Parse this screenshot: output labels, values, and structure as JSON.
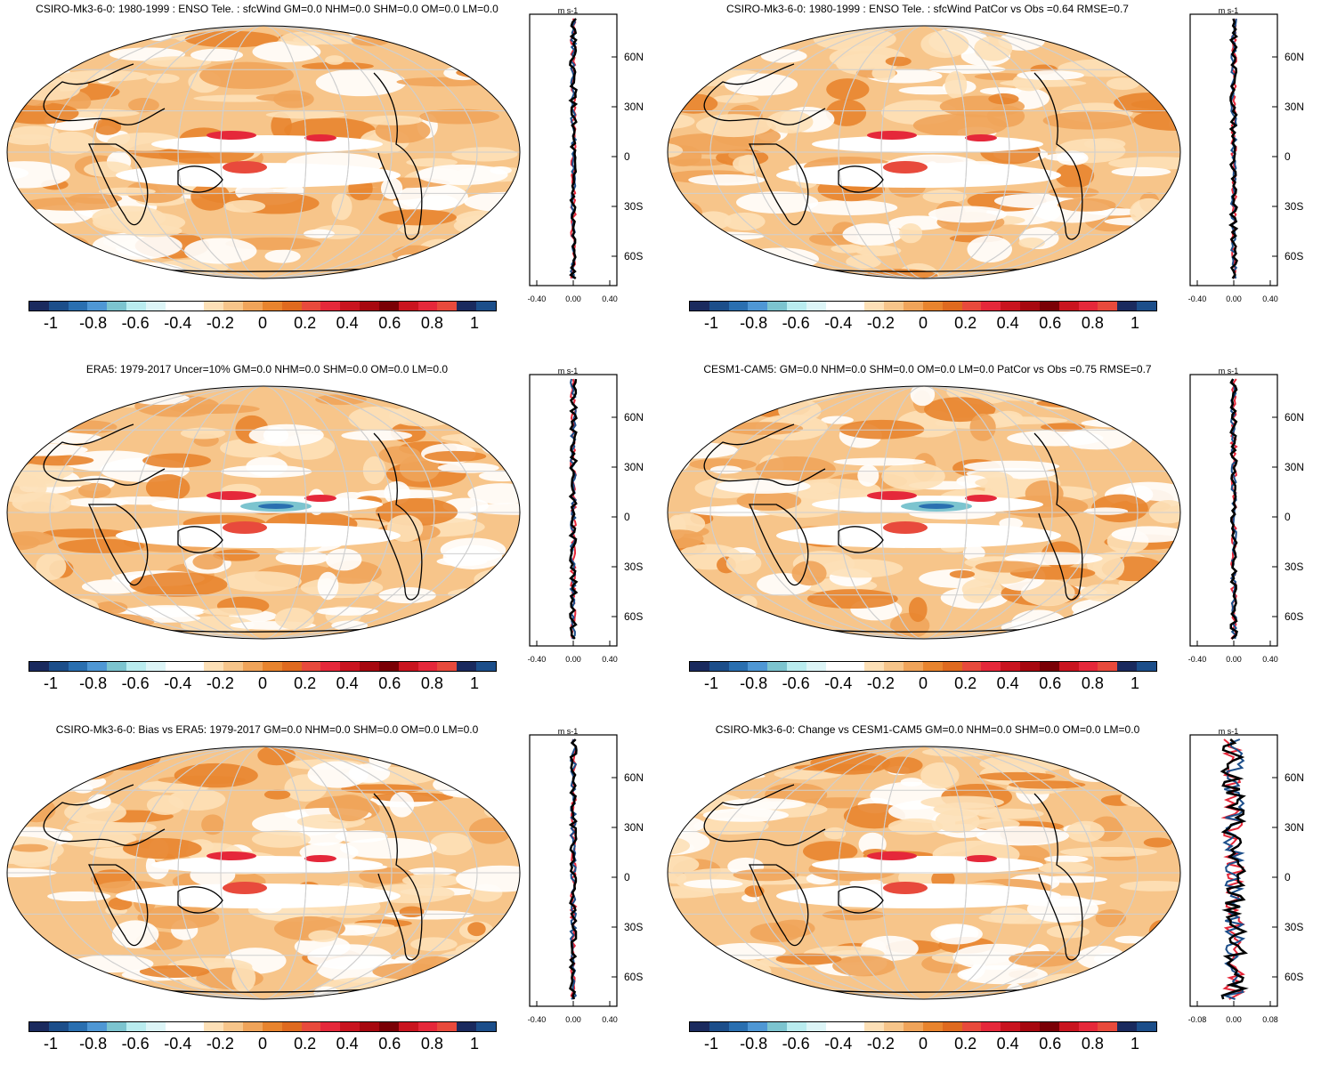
{
  "colorbar": {
    "labels": [
      "-1",
      "-0.8",
      "-0.6",
      "-0.4",
      "-0.2",
      "0",
      "0.2",
      "0.4",
      "0.6",
      "0.8",
      "1"
    ],
    "colors": [
      "#1a2a5e",
      "#1c4e8a",
      "#2a6fb0",
      "#4f97d4",
      "#7cc4cf",
      "#b9ecef",
      "#ddf5f7",
      "#ffffff",
      "#ffffff",
      "#fde0b7",
      "#f7c58a",
      "#f0a45a",
      "#e8842e",
      "#df6a1f",
      "#e84a3c",
      "#e5283a",
      "#c9141f",
      "#a7080f",
      "#7a0005",
      "#c9141f",
      "#e5283a",
      "#e84a3c",
      "#1a2a5e",
      "#1c4e8a"
    ]
  },
  "panels": [
    {
      "title": "CSIRO-Mk3-6-0: 1980-1999 : ENSO Tele. : sfcWind GM=0.0 NHM=0.0 SHM=0.0 OM=0.0 LM=0.0",
      "units": "m s-1",
      "lat_ticks": [
        "60N",
        "30N",
        "0",
        "30S",
        "60S"
      ],
      "x_ticks": [
        "-0.40",
        "0.00",
        "0.40"
      ]
    },
    {
      "title": "CSIRO-Mk3-6-0: 1980-1999 : ENSO Tele. : sfcWind PatCor vs Obs =0.64 RMSE=0.7",
      "units": "m s-1",
      "lat_ticks": [
        "60N",
        "30N",
        "0",
        "30S",
        "60S"
      ],
      "x_ticks": [
        "-0.40",
        "0.00",
        "0.40"
      ]
    },
    {
      "title": "ERA5: 1979-2017 Uncer=10% GM=0.0 NHM=0.0 SHM=0.0 OM=0.0 LM=0.0",
      "units": "m s-1",
      "lat_ticks": [
        "60N",
        "30N",
        "0",
        "30S",
        "60S"
      ],
      "x_ticks": [
        "-0.40",
        "0.00",
        "0.40"
      ]
    },
    {
      "title": "CESM1-CAM5: GM=0.0 NHM=0.0 SHM=0.0 OM=0.0 LM=0.0 PatCor vs Obs =0.75 RMSE=0.7",
      "units": "m s-1",
      "lat_ticks": [
        "60N",
        "30N",
        "0",
        "30S",
        "60S"
      ],
      "x_ticks": [
        "-0.40",
        "0.00",
        "0.40"
      ]
    },
    {
      "title": "CSIRO-Mk3-6-0: Bias vs ERA5: 1979-2017 GM=0.0 NHM=0.0 SHM=0.0 OM=0.0 LM=0.0",
      "units": "m s-1",
      "lat_ticks": [
        "60N",
        "30N",
        "0",
        "30S",
        "60S"
      ],
      "x_ticks": [
        "-0.40",
        "0.00",
        "0.40"
      ]
    },
    {
      "title": "CSIRO-Mk3-6-0: Change vs CESM1-CAM5 GM=0.0 NHM=0.0 SHM=0.0 OM=0.0 LM=0.0",
      "units": "m s-1",
      "lat_ticks": [
        "60N",
        "30N",
        "0",
        "30S",
        "60S"
      ],
      "x_ticks": [
        "-0.08",
        "0.00",
        "0.08"
      ]
    }
  ]
}
